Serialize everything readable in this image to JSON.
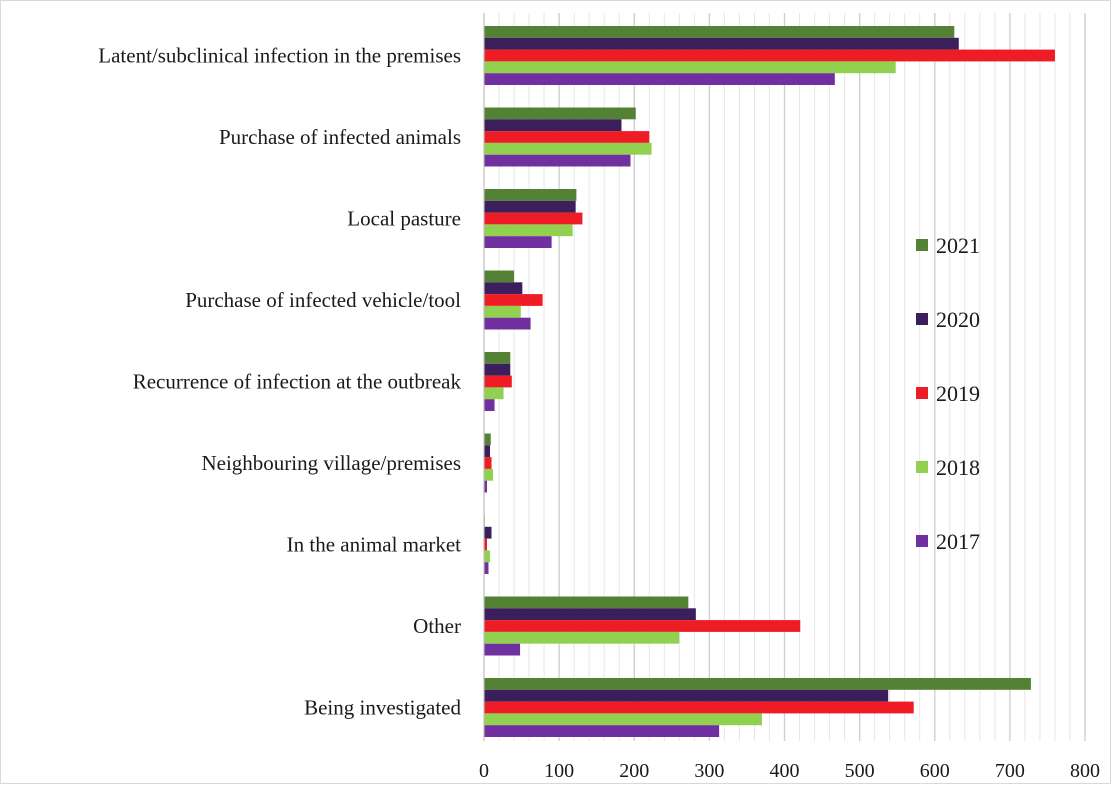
{
  "chart_data": {
    "type": "bar",
    "orientation": "horizontal",
    "categories": [
      "Latent/subclinical infection in the premises",
      "Purchase of infected animals",
      "Local pasture",
      "Purchase of infected vehicle/tool",
      "Recurrence of infection at the outbreak",
      "Neighbouring village/premises",
      "In the animal market",
      "Other",
      "Being investigated"
    ],
    "series": [
      {
        "name": "2021",
        "color": "#548235",
        "values": [
          626,
          202,
          123,
          40,
          35,
          9,
          1,
          272,
          728
        ]
      },
      {
        "name": "2020",
        "color": "#3b1f5c",
        "values": [
          632,
          183,
          122,
          51,
          35,
          8,
          10,
          282,
          538
        ]
      },
      {
        "name": "2019",
        "color": "#ee1c24",
        "values": [
          760,
          220,
          131,
          78,
          37,
          10,
          4,
          421,
          572
        ]
      },
      {
        "name": "2018",
        "color": "#92d050",
        "values": [
          548,
          223,
          118,
          49,
          26,
          12,
          8,
          260,
          370
        ]
      },
      {
        "name": "2017",
        "color": "#7030a0",
        "values": [
          467,
          195,
          90,
          62,
          14,
          4,
          6,
          48,
          313
        ]
      }
    ],
    "xlim": [
      0,
      800
    ],
    "xticks": [
      0,
      100,
      200,
      300,
      400,
      500,
      600,
      700,
      800
    ],
    "minor_grid_step": 20,
    "grid": true,
    "legend_position": "right",
    "legend_order": [
      "2021",
      "2020",
      "2019",
      "2018",
      "2017"
    ]
  }
}
